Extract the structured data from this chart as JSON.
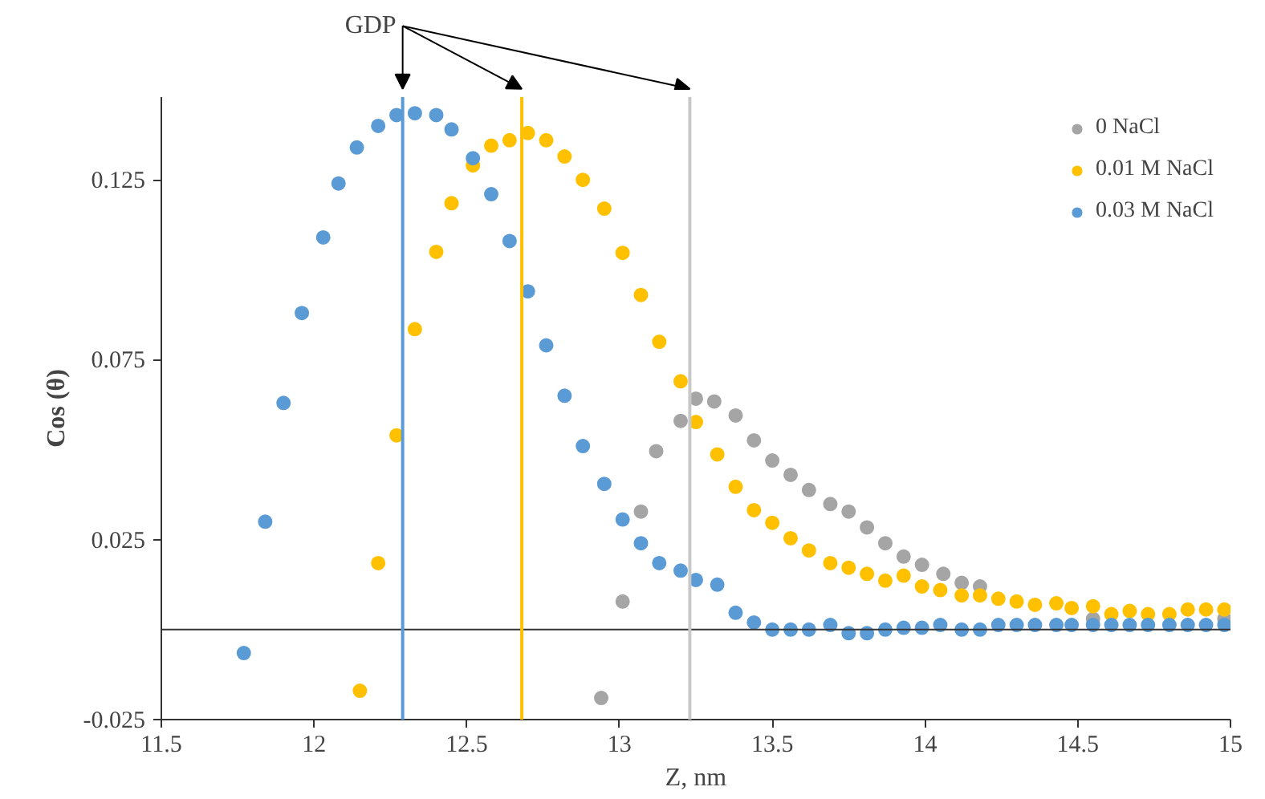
{
  "chart_data": {
    "type": "scatter",
    "xlabel": "Z, nm",
    "ylabel": "Cos (θ)",
    "xlim": [
      11.5,
      15
    ],
    "ylim": [
      -0.025,
      0.148
    ],
    "xticks": [
      11.5,
      12,
      12.5,
      13,
      13.5,
      14,
      14.5,
      15
    ],
    "yticks": [
      -0.025,
      0.025,
      0.075,
      0.125
    ],
    "grid": false,
    "legend": "top right",
    "marker": "circle",
    "annotations": [
      "GDP"
    ],
    "ref_lines": [
      {
        "axis": "x",
        "value": 12.29,
        "label": null,
        "color": "#5b9bd5"
      },
      {
        "axis": "x",
        "value": 12.68,
        "label": null,
        "color": "#ffc000"
      },
      {
        "axis": "x",
        "value": 13.23,
        "label": null,
        "color": "#c8c8c8"
      }
    ],
    "series": [
      {
        "name": "0 NaCl",
        "color": "#a5a5a5",
        "x": [
          12.94,
          13.01,
          13.07,
          13.12,
          13.2,
          13.25,
          13.31,
          13.38,
          13.44,
          13.5,
          13.56,
          13.62,
          13.69,
          13.75,
          13.81,
          13.87,
          13.93,
          13.99,
          14.06,
          14.12,
          14.18,
          14.24,
          14.3,
          14.36,
          14.43,
          14.48,
          14.55,
          14.61,
          14.67,
          14.73,
          14.8,
          14.86,
          14.92,
          14.98
        ],
        "values": [
          -0.019,
          0.0078,
          0.0328,
          0.0496,
          0.058,
          0.0642,
          0.0634,
          0.0595,
          0.0526,
          0.047,
          0.043,
          0.0388,
          0.0349,
          0.0328,
          0.0284,
          0.024,
          0.0203,
          0.018,
          0.0155,
          0.013,
          0.012,
          null,
          null,
          null,
          null,
          null,
          0.003,
          null,
          null,
          null,
          null,
          null,
          null,
          0.003
        ]
      },
      {
        "name": "0.01 M NaCl",
        "color": "#ffc000",
        "x": [
          12.15,
          12.21,
          12.27,
          12.33,
          12.4,
          12.45,
          12.52,
          12.58,
          12.64,
          12.7,
          12.76,
          12.82,
          12.88,
          12.95,
          13.01,
          13.07,
          13.13,
          13.2,
          13.25,
          13.32,
          13.38,
          13.44,
          13.5,
          13.56,
          13.62,
          13.69,
          13.75,
          13.81,
          13.87,
          13.93,
          13.99,
          14.05,
          14.12,
          14.18,
          14.24,
          14.3,
          14.36,
          14.43,
          14.48,
          14.55,
          14.61,
          14.67,
          14.73,
          14.8,
          14.86,
          14.92,
          14.98
        ],
        "values": [
          -0.017,
          0.0185,
          0.054,
          0.0835,
          0.105,
          0.1185,
          0.129,
          0.1345,
          0.136,
          0.138,
          0.136,
          0.1315,
          0.125,
          0.117,
          0.1047,
          0.093,
          0.08,
          0.069,
          0.0577,
          0.0487,
          0.0397,
          0.0332,
          0.0297,
          0.0254,
          0.022,
          0.0185,
          0.0172,
          0.0155,
          0.0136,
          0.015,
          0.012,
          0.011,
          0.0095,
          0.0095,
          0.0086,
          0.0078,
          0.0069,
          0.0073,
          0.006,
          0.0065,
          0.0043,
          0.0052,
          0.0043,
          0.0043,
          0.0056,
          0.0056,
          0.0056
        ]
      },
      {
        "name": "0.03 M NaCl",
        "color": "#5b9bd5",
        "x": [
          11.77,
          11.84,
          11.9,
          11.96,
          12.03,
          12.08,
          12.14,
          12.21,
          12.27,
          12.33,
          12.4,
          12.45,
          12.52,
          12.58,
          12.64,
          12.7,
          12.76,
          12.82,
          12.88,
          12.95,
          13.01,
          13.07,
          13.13,
          13.2,
          13.25,
          13.32,
          13.38,
          13.44,
          13.5,
          13.56,
          13.62,
          13.69,
          13.75,
          13.81,
          13.87,
          13.93,
          13.99,
          14.05,
          14.12,
          14.18,
          14.24,
          14.3,
          14.36,
          14.43,
          14.48,
          14.55,
          14.61,
          14.67,
          14.73,
          14.8,
          14.86,
          14.92,
          14.98
        ],
        "values": [
          -0.0065,
          0.03,
          0.063,
          0.088,
          0.109,
          0.124,
          0.134,
          0.14,
          0.143,
          0.1435,
          0.143,
          0.139,
          0.131,
          0.121,
          0.108,
          0.094,
          0.079,
          0.065,
          0.051,
          0.0405,
          0.0306,
          0.024,
          0.0185,
          0.0164,
          0.0138,
          0.0125,
          0.0047,
          0.002,
          0,
          0,
          0,
          0.0013,
          -0.001,
          -0.001,
          0,
          0.0005,
          0.0005,
          0.0013,
          0,
          0,
          0.0013,
          0.0013,
          0.0013,
          0.0013,
          0.0013,
          0.0013,
          0.0013,
          0.0013,
          0.0013,
          0.0013,
          0.0013,
          0.0013,
          0.0013
        ]
      }
    ]
  }
}
